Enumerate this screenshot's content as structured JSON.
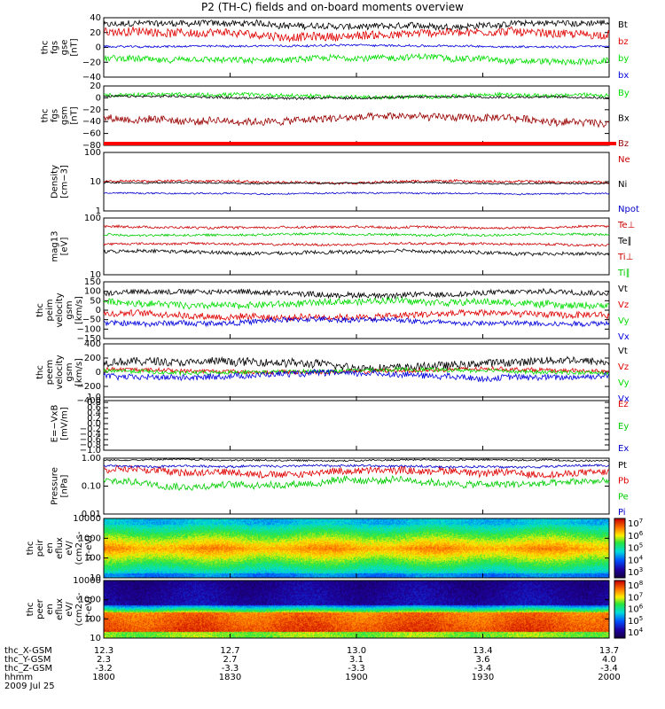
{
  "title": "P2 (TH-C) fields and on-board moments overview",
  "chart_data": [
    {
      "type": "line",
      "panel": "fgs_gse",
      "ylabel": [
        "thc",
        "fgs",
        "gse",
        "[nT]"
      ],
      "ylim": [
        -40,
        40
      ],
      "yticks": [
        "40",
        "20",
        "0",
        "−20",
        "−40"
      ],
      "series": [
        {
          "name": "Bt",
          "color": "#000000",
          "base": 30,
          "amp": 6
        },
        {
          "name": "bz",
          "color": "#e00000",
          "base": 18,
          "amp": 8
        },
        {
          "name": "by",
          "color": "#00dd00",
          "base": -16,
          "amp": 6
        },
        {
          "name": "bx",
          "color": "#0000dd",
          "base": 2,
          "amp": 2
        }
      ]
    },
    {
      "type": "line",
      "panel": "fgs_gsm",
      "ylabel": [
        "thc",
        "fgs",
        "gsm",
        "[nT]"
      ],
      "ylim": [
        -90,
        20
      ],
      "yticks": [
        "20",
        "0",
        "−20",
        "−40",
        "−60",
        "−80"
      ],
      "series": [
        {
          "name": "By",
          "color": "#00dd00",
          "base": 2,
          "amp": 5
        },
        {
          "name": "Bx",
          "color": "#000000",
          "base": -1,
          "amp": 3
        },
        {
          "name": "Bz",
          "color": "#990000",
          "base": -42,
          "amp": 10
        }
      ]
    },
    {
      "type": "line",
      "panel": "density",
      "ylabel": [
        "Density",
        "[cm−3]"
      ],
      "log": true,
      "ylim": [
        1,
        100
      ],
      "yticks": [
        "100",
        "10",
        "1"
      ],
      "series": [
        {
          "name": "Ne",
          "color": "#cc0000",
          "base": 10,
          "amp": 0.08
        },
        {
          "name": "Ni",
          "color": "#000000",
          "base": 9,
          "amp": 0.05
        },
        {
          "name": "Npot",
          "color": "#0000cc",
          "base": 4,
          "amp": 0.05
        }
      ]
    },
    {
      "type": "line",
      "panel": "temperature",
      "ylabel": [
        "mag13",
        "[eV]"
      ],
      "log": true,
      "ylim": [
        10,
        1000
      ],
      "yticks": [
        "100",
        "10"
      ],
      "series": [
        {
          "name": "Te⊥",
          "color": "#cc0000",
          "base": 120,
          "amp": 0.08
        },
        {
          "name": "Te∥",
          "color": "#000000",
          "base": 60,
          "amp": 0.12
        },
        {
          "name": "Ti⊥",
          "color": "#cc0000",
          "base": 480,
          "amp": 0.08
        },
        {
          "name": "Ti∥",
          "color": "#00cc00",
          "base": 260,
          "amp": 0.08
        }
      ]
    },
    {
      "type": "line",
      "panel": "peim_velocity",
      "ylabel": [
        "thc",
        "peim",
        "velocity",
        "gsm",
        "[km/s]"
      ],
      "ylim": [
        -150,
        150
      ],
      "yticks": [
        "150",
        "100",
        "50",
        "0",
        "−50",
        "−100",
        "−150"
      ],
      "series": [
        {
          "name": "Vt",
          "color": "#000000",
          "base": 90,
          "amp": 20
        },
        {
          "name": "Vz",
          "color": "#e00000",
          "base": -30,
          "amp": 25
        },
        {
          "name": "Vy",
          "color": "#00dd00",
          "base": 40,
          "amp": 25
        },
        {
          "name": "Vx",
          "color": "#0000dd",
          "base": -60,
          "amp": 20
        }
      ]
    },
    {
      "type": "line",
      "panel": "peem_velocity",
      "ylabel": [
        "thc",
        "peem",
        "velocity",
        "gsm",
        "[km/s]"
      ],
      "ylim": [
        -400,
        400
      ],
      "yticks": [
        "400",
        "200",
        "0",
        "−200",
        "−400"
      ],
      "series": [
        {
          "name": "Vt",
          "color": "#000000",
          "base": 120,
          "amp": 80
        },
        {
          "name": "Vz",
          "color": "#e00000",
          "base": 20,
          "amp": 40
        },
        {
          "name": "Vy",
          "color": "#00dd00",
          "base": 10,
          "amp": 40
        },
        {
          "name": "Vx",
          "color": "#0000dd",
          "base": -40,
          "amp": 60
        }
      ]
    },
    {
      "type": "line",
      "panel": "efield",
      "ylabel": [
        "E=−VxB",
        "[mV/m]"
      ],
      "ylim": [
        -1,
        1
      ],
      "yticks": [
        "1.0",
        "0.8",
        "0.6",
        "0.4",
        "0.2",
        "0.0",
        "−0.2",
        "−0.4",
        "−0.6",
        "−0.8",
        "−1.0"
      ],
      "series": [
        {
          "name": "Ez",
          "color": "#e00000"
        },
        {
          "name": "Ey",
          "color": "#00cc00"
        },
        {
          "name": "Ex",
          "color": "#0000cc"
        }
      ]
    },
    {
      "type": "line",
      "panel": "pressure",
      "ylabel": [
        "Pressure",
        "[nPa]"
      ],
      "log": true,
      "ylim": [
        0.01,
        1
      ],
      "yticks": [
        "1.00",
        "0.10",
        "0.01"
      ],
      "series": [
        {
          "name": "Pt",
          "color": "#000000",
          "base": 0.85,
          "amp": 0.06
        },
        {
          "name": "Pb",
          "color": "#e00000",
          "base": 0.33,
          "amp": 0.25
        },
        {
          "name": "Pe",
          "color": "#00cc00",
          "base": 0.13,
          "amp": 0.25
        },
        {
          "name": "Pi",
          "color": "#0000cc",
          "base": 0.52,
          "amp": 0.08
        }
      ]
    },
    {
      "type": "heatmap",
      "panel": "peir_spectrogram",
      "ylabel": [
        "thc",
        "peir",
        "en",
        "eflux",
        "eV/",
        "(cm2-s-",
        "sr-eV)"
      ],
      "log": true,
      "ylim": [
        10,
        10000
      ],
      "yticks": [
        "10000",
        "1000",
        "100",
        "10"
      ],
      "colorbar": {
        "min_exp": 3,
        "max_exp": 7,
        "labels": [
          "10^7",
          "10^6",
          "10^5",
          "10^4",
          "10^3"
        ]
      }
    },
    {
      "type": "heatmap",
      "panel": "peer_spectrogram",
      "ylabel": [
        "thc",
        "peer",
        "en",
        "eflux",
        "eV/",
        "(cm2-s-",
        "sr-eV)"
      ],
      "log": true,
      "ylim": [
        10,
        10000
      ],
      "yticks": [
        "10000",
        "1000",
        "100",
        "10"
      ],
      "colorbar": {
        "min_exp": 4,
        "max_exp": 8,
        "labels": [
          "10^8",
          "10^7",
          "10^6",
          "10^5",
          "10^4"
        ]
      }
    }
  ],
  "time_axis": {
    "rows": [
      {
        "label": "thc_X-GSM",
        "values": [
          "12.3",
          "12.7",
          "13.0",
          "13.4",
          "13.7"
        ]
      },
      {
        "label": "thc_Y-GSM",
        "values": [
          "2.3",
          "2.7",
          "3.1",
          "3.6",
          "4.0"
        ]
      },
      {
        "label": "thc_Z-GSM",
        "values": [
          "-3.2",
          "-3.3",
          "-3.3",
          "-3.4",
          "-3.4"
        ]
      },
      {
        "label": "hhmm",
        "values": [
          "1800",
          "1830",
          "1900",
          "1930",
          "2000"
        ]
      }
    ],
    "date": "2009 Jul 25"
  }
}
